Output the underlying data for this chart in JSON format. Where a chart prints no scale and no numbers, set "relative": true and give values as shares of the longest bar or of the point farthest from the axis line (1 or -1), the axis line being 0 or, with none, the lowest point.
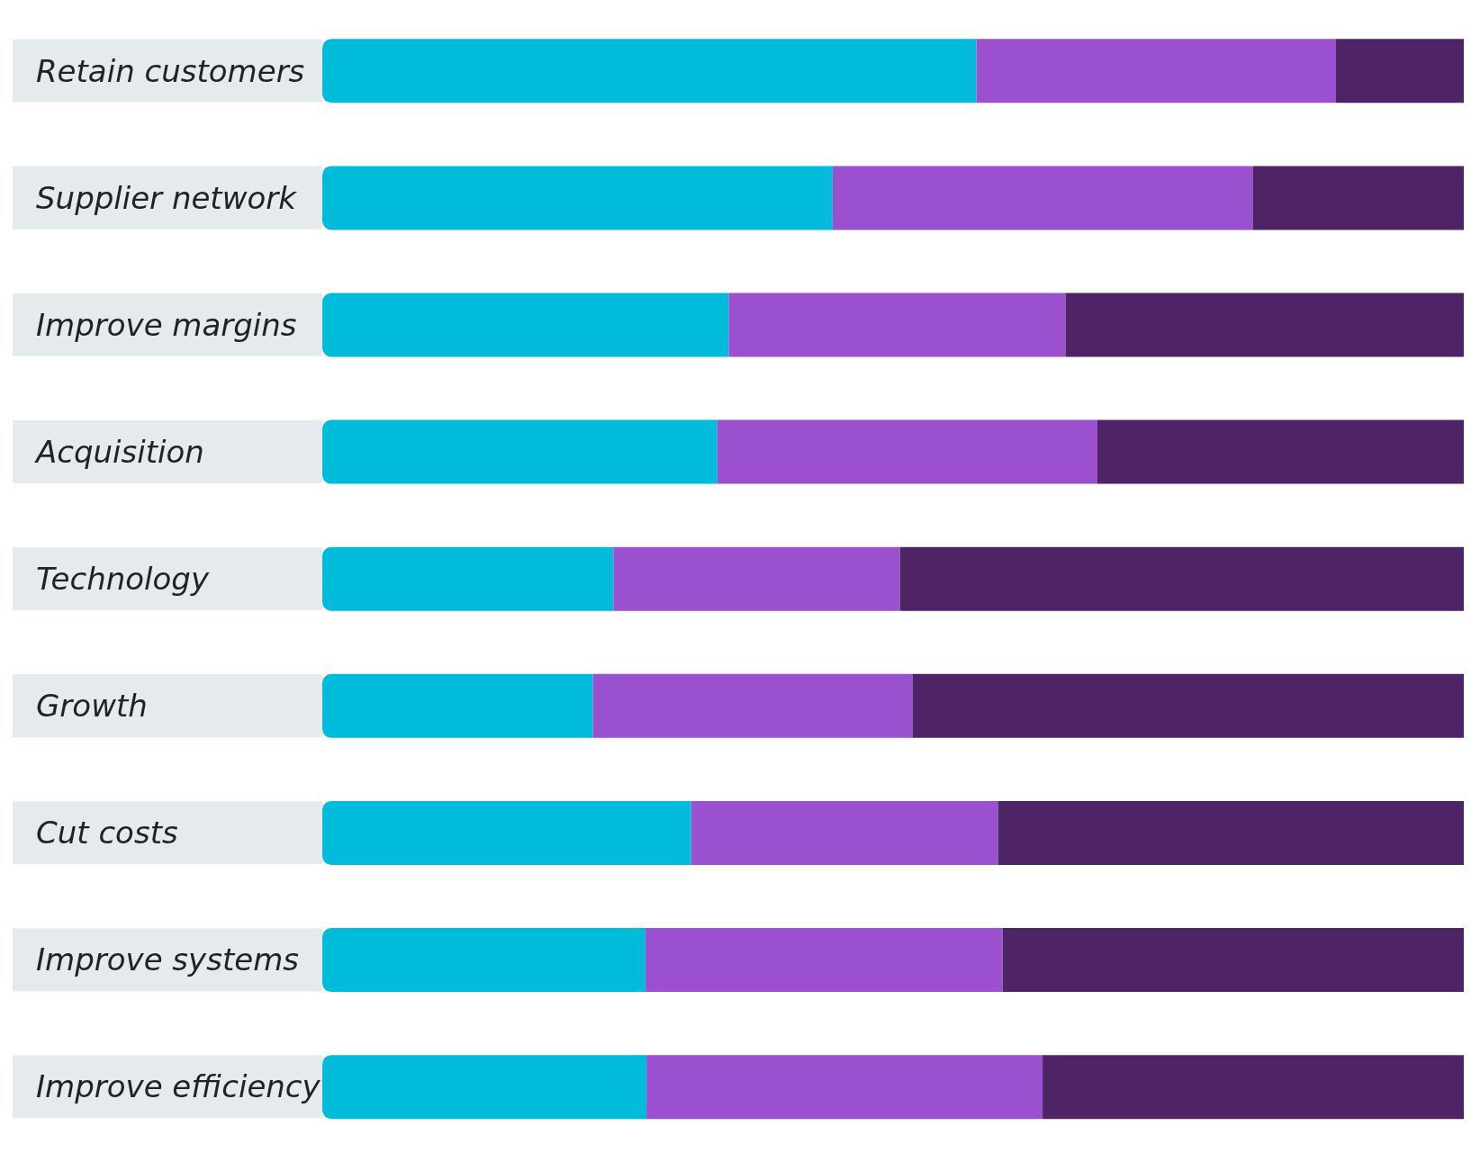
{
  "chart_data": {
    "type": "bar",
    "orientation": "horizontal",
    "stacked": true,
    "relative": true,
    "legend": false,
    "categories": [
      "Retain customers",
      "Supplier network",
      "Improve margins",
      "Acquisition",
      "Technology",
      "Growth",
      "Cut costs",
      "Improve systems",
      "Improve efficiency"
    ],
    "series": [
      {
        "color": "#00bbd9",
        "values": [
          0.573,
          0.447,
          0.356,
          0.346,
          0.255,
          0.237,
          0.323,
          0.283,
          0.284
        ]
      },
      {
        "color": "#9a50cf",
        "values": [
          0.315,
          0.368,
          0.295,
          0.333,
          0.251,
          0.28,
          0.269,
          0.313,
          0.347
        ]
      },
      {
        "color": "#4f2466",
        "values": [
          0.112,
          0.185,
          0.349,
          0.321,
          0.494,
          0.483,
          0.408,
          0.404,
          0.369
        ]
      }
    ]
  }
}
